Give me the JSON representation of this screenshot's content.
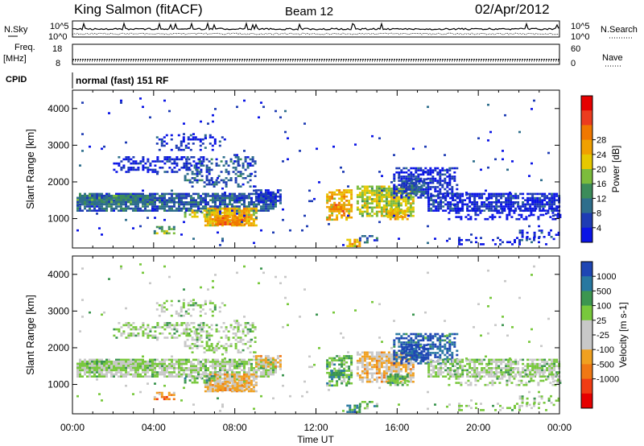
{
  "header": {
    "station": "King Salmon (fitACF)",
    "beam": "Beam 12",
    "date": "02/Apr/2012"
  },
  "strip_labels": {
    "nsky": "N.Sky",
    "nsky_top": "10^5",
    "nsky_bottom": "10^0",
    "nsearch": "N.Search",
    "nsearch_top": "10^5",
    "nsearch_bottom": "10^0",
    "freq": "Freq.",
    "freq_unit": "[MHz]",
    "freq_top": "18",
    "freq_bottom": "8",
    "nave": "Nave",
    "nave_top": "60",
    "nave_bottom": "0",
    "cpid_label": "CPID",
    "cpid_value": "normal (fast) 151 RF"
  },
  "chart_data": [
    {
      "type": "heatmap",
      "name": "power",
      "ylabel": "Slant Range [km]",
      "ylim": [
        200,
        4500
      ],
      "yticks": [
        "1000",
        "2000",
        "3000",
        "4000"
      ],
      "xlim": [
        0,
        24
      ],
      "colorbar": {
        "label": "Power [dB]",
        "ticks": [
          "4",
          "8",
          "12",
          "16",
          "20",
          "24",
          "28"
        ],
        "colors": [
          "#0a14e6",
          "#1e3cb4",
          "#2e6e8c",
          "#3c8c5a",
          "#7cbc3c",
          "#e6c800",
          "#f0a000",
          "#f07800",
          "#ec3c1e",
          "#e60000"
        ]
      }
    },
    {
      "type": "heatmap",
      "name": "velocity",
      "ylabel": "Slant Range [km]",
      "ylim": [
        200,
        4500
      ],
      "yticks": [
        "1000",
        "2000",
        "3000",
        "4000"
      ],
      "xlim": [
        0,
        24
      ],
      "xlabel": "Time UT",
      "xticks": [
        "00:00",
        "04:00",
        "08:00",
        "12:00",
        "16:00",
        "20:00",
        "00:00"
      ],
      "colorbar": {
        "label": "Velocity [m s-1]",
        "ticks": [
          "1000",
          "500",
          "100",
          "25",
          "-25",
          "-100",
          "-500",
          "-1000"
        ],
        "colors": [
          "#1e46b4",
          "#2878a0",
          "#3c9650",
          "#78c83c",
          "#c8c8c8",
          "#c8c8c8",
          "#f0a020",
          "#f07814",
          "#f03c14",
          "#e60000"
        ]
      }
    }
  ]
}
